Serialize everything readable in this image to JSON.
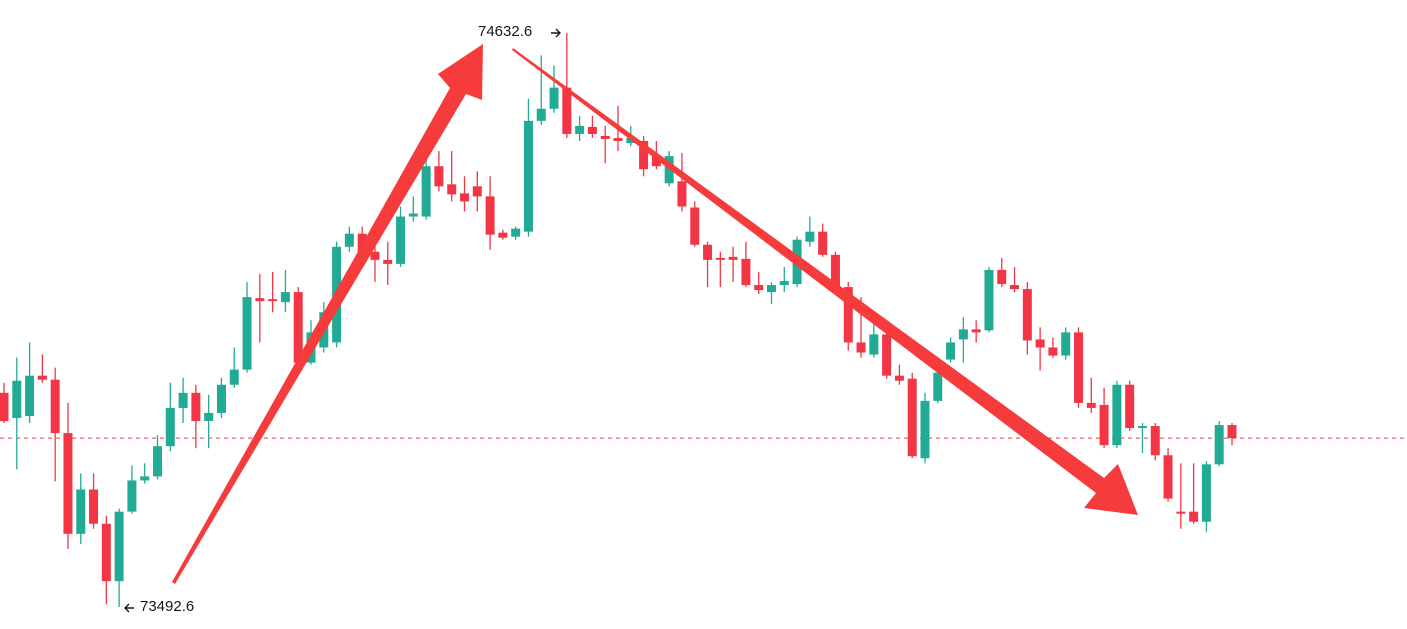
{
  "chart_data": {
    "type": "candlestick",
    "up_color": "#22ab94",
    "down_color": "#f23645",
    "ylim": [
      73449,
      74698
    ],
    "last_price_line": true,
    "open": [
      73918,
      73868,
      73872,
      73952,
      73944,
      73838,
      73638,
      73726,
      73658,
      73544,
      73682,
      73744,
      73752,
      73812,
      73888,
      73918,
      73862,
      73878,
      73934,
      73964,
      74106,
      74104,
      74098,
      74118,
      73978,
      74008,
      74018,
      74208,
      74234,
      74198,
      74182,
      74174,
      74268,
      74268,
      74368,
      74332,
      74314,
      74328,
      74308,
      74236,
      74228,
      74238,
      74458,
      74482,
      74524,
      74432,
      74446,
      74428,
      74424,
      74414,
      74418,
      74388,
      74334,
      74338,
      74286,
      74212,
      74186,
      74188,
      74184,
      74132,
      74118,
      74132,
      74134,
      74218,
      74238,
      74192,
      74128,
      74018,
      73994,
      74034,
      73952,
      73946,
      73788,
      73902,
      73984,
      74024,
      74044,
      74042,
      74162,
      74132,
      74124,
      74024,
      74008,
      73992,
      74038,
      73898,
      73894,
      73814,
      73934,
      73848,
      73852,
      73794,
      73682,
      73682,
      73662,
      73776,
      73854
    ],
    "high": [
      73938,
      73988,
      74018,
      73994,
      73968,
      73898,
      73758,
      73758,
      73674,
      73688,
      73774,
      73778,
      73834,
      73938,
      73948,
      73934,
      73914,
      73948,
      74008,
      74138,
      74154,
      74158,
      74162,
      74128,
      74062,
      74098,
      74218,
      74248,
      74248,
      74218,
      74218,
      74288,
      74308,
      74398,
      74398,
      74398,
      74348,
      74358,
      74348,
      74242,
      74248,
      74502,
      74588,
      74568,
      74632.6,
      74468,
      74468,
      74448,
      74488,
      74448,
      74428,
      74418,
      74398,
      74394,
      74298,
      74218,
      74198,
      74208,
      74218,
      74158,
      74138,
      74168,
      74228,
      74268,
      74254,
      74198,
      74138,
      74108,
      74058,
      74058,
      73974,
      73958,
      73918,
      73988,
      74028,
      74068,
      74062,
      74168,
      74186,
      74168,
      74138,
      74048,
      74028,
      74048,
      74048,
      73948,
      73928,
      73942,
      73942,
      73858,
      73858,
      73808,
      73778,
      73778,
      73782,
      73862,
      73858
    ],
    "low": [
      73858,
      73766,
      73858,
      73938,
      73742,
      73608,
      73618,
      73648,
      73498,
      73492.6,
      73678,
      73738,
      73746,
      73802,
      73858,
      73808,
      73808,
      73868,
      73928,
      73958,
      74018,
      74078,
      74078,
      73974,
      73974,
      73998,
      74008,
      74198,
      74178,
      74138,
      74132,
      74168,
      74258,
      74262,
      74318,
      74298,
      74278,
      74278,
      74202,
      74222,
      74222,
      74228,
      74450,
      74474,
      74424,
      74418,
      74424,
      74374,
      74398,
      74408,
      74348,
      74362,
      74328,
      74278,
      74208,
      74128,
      74128,
      74138,
      74128,
      74114,
      74094,
      74118,
      74128,
      74208,
      74188,
      74118,
      74002,
      73988,
      73988,
      73946,
      73934,
      73788,
      73778,
      73898,
      73978,
      73978,
      74018,
      74038,
      74128,
      74118,
      73994,
      73962,
      73988,
      73984,
      73888,
      73878,
      73808,
      73808,
      73842,
      73798,
      73784,
      73702,
      73648,
      73658,
      73642,
      73772,
      73814
    ],
    "close": [
      73862,
      73942,
      73952,
      73944,
      73838,
      73638,
      73726,
      73658,
      73544,
      73682,
      73744,
      73752,
      73812,
      73888,
      73918,
      73862,
      73878,
      73934,
      73964,
      74108,
      74100,
      74100,
      74118,
      73978,
      74038,
      74078,
      74208,
      74234,
      74198,
      74182,
      74174,
      74268,
      74274,
      74368,
      74328,
      74312,
      74298,
      74308,
      74232,
      74226,
      74244,
      74458,
      74482,
      74524,
      74432,
      74448,
      74432,
      74422,
      74418,
      74424,
      74362,
      74368,
      74388,
      74288,
      74212,
      74182,
      74182,
      74182,
      74132,
      74122,
      74132,
      74140,
      74222,
      74238,
      74192,
      74128,
      74018,
      73998,
      74034,
      73952,
      73942,
      73792,
      73902,
      73958,
      74018,
      74044,
      74038,
      74162,
      74134,
      74124,
      74022,
      74008,
      73992,
      74038,
      73898,
      73888,
      73814,
      73934,
      73848,
      73852,
      73794,
      73708,
      73678,
      73662,
      73776,
      73854,
      73828
    ]
  }
}
